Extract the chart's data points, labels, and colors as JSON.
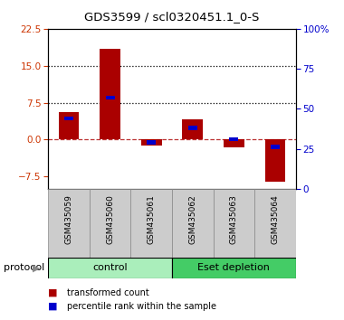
{
  "title": "GDS3599 / scl0320451.1_0-S",
  "samples": [
    "GSM435059",
    "GSM435060",
    "GSM435061",
    "GSM435062",
    "GSM435063",
    "GSM435064"
  ],
  "red_values": [
    5.5,
    18.5,
    -1.2,
    4.2,
    -1.5,
    -8.5
  ],
  "blue_values_pct": [
    44,
    57,
    29,
    38,
    31,
    26
  ],
  "ylim_left": [
    -10.0,
    22.5
  ],
  "ylim_right": [
    0,
    100
  ],
  "yticks_left": [
    -7.5,
    0,
    7.5,
    15,
    22.5
  ],
  "yticks_right": [
    0,
    25,
    50,
    75,
    100
  ],
  "groups": [
    {
      "label": "control",
      "indices": [
        0,
        1,
        2
      ],
      "color": "#AAEEBB"
    },
    {
      "label": "Eset depletion",
      "indices": [
        3,
        4,
        5
      ],
      "color": "#44CC66"
    }
  ],
  "protocol_label": "protocol",
  "red_color": "#AA0000",
  "blue_color": "#0000CC",
  "bar_width": 0.5,
  "legend_red": "transformed count",
  "legend_blue": "percentile rank within the sample",
  "background_color": "#ffffff",
  "plot_bg_color": "#ffffff",
  "tick_color_left": "#CC3300",
  "tick_color_right": "#0000CC",
  "sample_box_color": "#CCCCCC",
  "sample_box_edge": "#888888"
}
